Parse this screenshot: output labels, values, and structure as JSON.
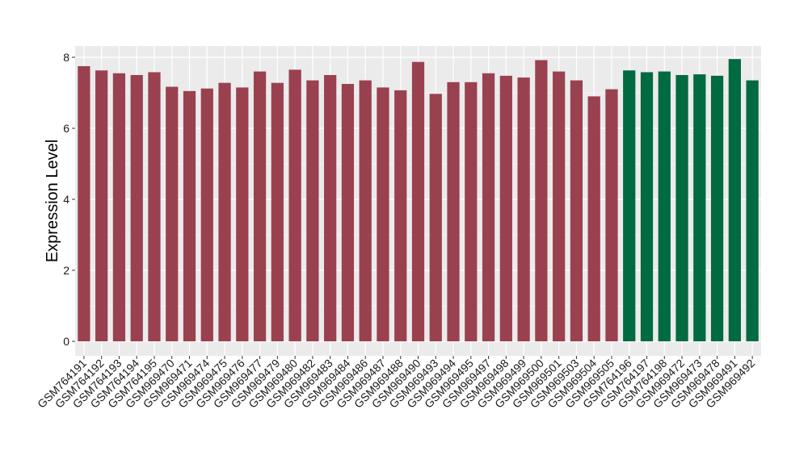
{
  "chart_data": {
    "type": "bar",
    "ylabel": "Expression Level",
    "xlabel": "",
    "title": "",
    "ylim": [
      0,
      8.2
    ],
    "yticks": [
      0,
      2,
      4,
      6,
      8
    ],
    "grid": true,
    "legend": "none",
    "colors": {
      "group1": "#9a4150",
      "group2": "#006a40",
      "panel": "#ebebeb",
      "grid": "#ffffff"
    },
    "categories": [
      "GSM764191",
      "GSM764192",
      "GSM764193",
      "GSM764194",
      "GSM764195",
      "GSM969470",
      "GSM969471",
      "GSM969474",
      "GSM969475",
      "GSM969476",
      "GSM969477",
      "GSM969479",
      "GSM969480",
      "GSM969482",
      "GSM969483",
      "GSM969484",
      "GSM969486",
      "GSM969487",
      "GSM969488",
      "GSM969490",
      "GSM969493",
      "GSM969494",
      "GSM969495",
      "GSM969497",
      "GSM969498",
      "GSM969499",
      "GSM969500",
      "GSM969501",
      "GSM969503",
      "GSM969504",
      "GSM969505",
      "GSM764196",
      "GSM764197",
      "GSM764198",
      "GSM969472",
      "GSM969473",
      "GSM969478",
      "GSM969491",
      "GSM969492"
    ],
    "values": [
      7.75,
      7.63,
      7.55,
      7.5,
      7.58,
      7.17,
      7.05,
      7.12,
      7.28,
      7.15,
      7.6,
      7.28,
      7.65,
      7.35,
      7.5,
      7.25,
      7.35,
      7.15,
      7.07,
      7.87,
      6.97,
      7.3,
      7.3,
      7.55,
      7.48,
      7.43,
      7.92,
      7.6,
      7.35,
      6.9,
      7.1,
      7.63,
      7.58,
      7.6,
      7.5,
      7.52,
      7.48,
      7.95,
      7.35
    ],
    "groups": [
      1,
      1,
      1,
      1,
      1,
      1,
      1,
      1,
      1,
      1,
      1,
      1,
      1,
      1,
      1,
      1,
      1,
      1,
      1,
      1,
      1,
      1,
      1,
      1,
      1,
      1,
      1,
      1,
      1,
      1,
      1,
      2,
      2,
      2,
      2,
      2,
      2,
      2,
      2
    ]
  }
}
